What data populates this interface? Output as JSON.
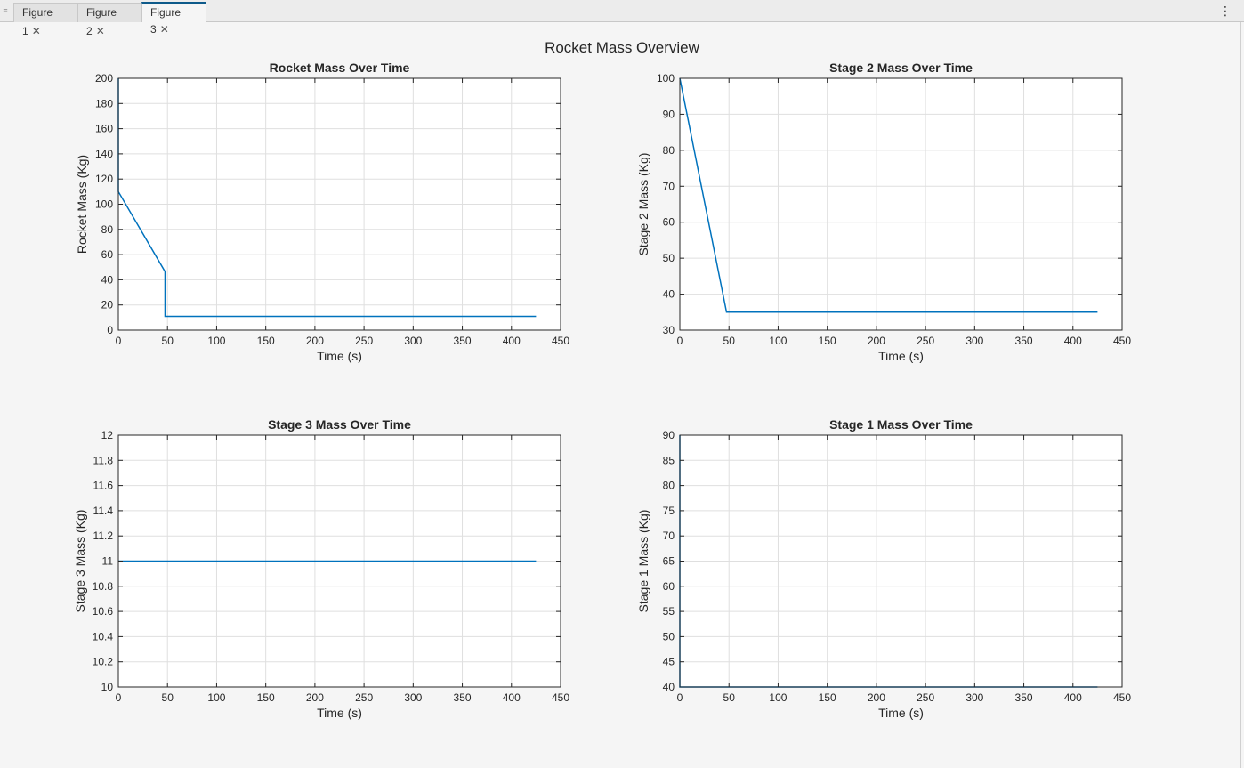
{
  "tabs": [
    {
      "label": "Figure 1",
      "active": false
    },
    {
      "label": "Figure 2",
      "active": false
    },
    {
      "label": "Figure 3",
      "active": true
    }
  ],
  "icons": {
    "grip": "grip-icon",
    "close": "close-icon",
    "menu": "more-options-icon"
  },
  "figure_title": "Rocket Mass Overview",
  "colors": {
    "line": "#0072bd",
    "grid": "#dfdfdf",
    "axis": "#262626"
  },
  "chart_data": [
    {
      "type": "line",
      "title": "Rocket Mass Over Time",
      "xlabel": "Time (s)",
      "ylabel": "Rocket Mass (Kg)",
      "xlim": [
        0,
        450
      ],
      "ylim": [
        0,
        200
      ],
      "xticks": [
        0,
        50,
        100,
        150,
        200,
        250,
        300,
        350,
        400,
        450
      ],
      "yticks": [
        0,
        20,
        40,
        60,
        80,
        100,
        120,
        140,
        160,
        180,
        200
      ],
      "grid": true,
      "x": [
        0,
        0,
        0,
        47.5,
        47.5,
        425
      ],
      "y": [
        200,
        110,
        110,
        46.5,
        11,
        11
      ]
    },
    {
      "type": "line",
      "title": "Stage 2 Mass Over Time",
      "xlabel": "Time (s)",
      "ylabel": "Stage 2 Mass (Kg)",
      "xlim": [
        0,
        450
      ],
      "ylim": [
        30,
        100
      ],
      "xticks": [
        0,
        50,
        100,
        150,
        200,
        250,
        300,
        350,
        400,
        450
      ],
      "yticks": [
        30,
        40,
        50,
        60,
        70,
        80,
        90,
        100
      ],
      "grid": true,
      "x": [
        0,
        47.5,
        425
      ],
      "y": [
        100,
        35,
        35
      ]
    },
    {
      "type": "line",
      "title": "Stage 3 Mass Over Time",
      "xlabel": "Time (s)",
      "ylabel": "Stage 3 Mass (Kg)",
      "xlim": [
        0,
        450
      ],
      "ylim": [
        10,
        12
      ],
      "xticks": [
        0,
        50,
        100,
        150,
        200,
        250,
        300,
        350,
        400,
        450
      ],
      "yticks": [
        10,
        10.2,
        10.4,
        10.6,
        10.8,
        11,
        11.2,
        11.4,
        11.6,
        11.8,
        12
      ],
      "grid": true,
      "x": [
        0,
        425
      ],
      "y": [
        11,
        11
      ]
    },
    {
      "type": "line",
      "title": "Stage 1 Mass Over Time",
      "xlabel": "Time (s)",
      "ylabel": "Stage 1 Mass (Kg)",
      "xlim": [
        0,
        450
      ],
      "ylim": [
        40,
        90
      ],
      "xticks": [
        0,
        50,
        100,
        150,
        200,
        250,
        300,
        350,
        400,
        450
      ],
      "yticks": [
        40,
        45,
        50,
        55,
        60,
        65,
        70,
        75,
        80,
        85,
        90
      ],
      "grid": true,
      "x": [
        0,
        0,
        425
      ],
      "y": [
        90,
        40,
        40
      ]
    }
  ]
}
